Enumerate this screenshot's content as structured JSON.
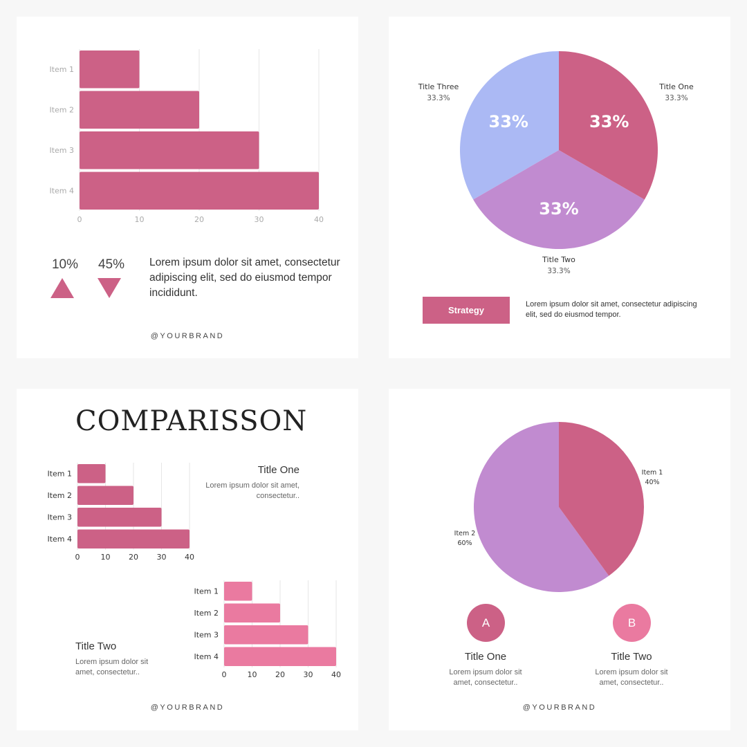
{
  "colors": {
    "pink": "#cc6186",
    "light_pink": "#ea7aa0",
    "lavender": "#abb9f4",
    "purple": "#c18bd0",
    "background": "#f7f7f7"
  },
  "panel1": {
    "brand": "@YOURBRAND",
    "stats": [
      {
        "value": "10%",
        "direction": "up"
      },
      {
        "value": "45%",
        "direction": "down"
      }
    ],
    "text": "Lorem ipsum dolor sit amet, consectetur adipiscing elit, sed do eiusmod tempor incididunt."
  },
  "panel2": {
    "slice_labels": [
      {
        "title": "Title One",
        "pct": "33.3%"
      },
      {
        "title": "Title Two",
        "pct": "33.3%"
      },
      {
        "title": "Title Three",
        "pct": "33.3%"
      }
    ],
    "inner_labels": [
      "33%",
      "33%",
      "33%"
    ],
    "button": "Strategy",
    "text": "Lorem ipsum dolor sit amet, consectetur adipiscing elit, sed do eiusmod tempor."
  },
  "panel3": {
    "title": "COMPARISSON",
    "block_one": {
      "title": "Title One",
      "text": "Lorem ipsum dolor sit amet, consectetur.."
    },
    "block_two": {
      "title": "Title Two",
      "text": "Lorem ipsum dolor sit amet, consectetur.."
    },
    "brand": "@YOURBRAND"
  },
  "panel4": {
    "slice_labels": [
      {
        "title": "Item 1",
        "pct": "40%"
      },
      {
        "title": "Item 2",
        "pct": "60%"
      }
    ],
    "circles": [
      {
        "letter": "A",
        "title": "Title One",
        "text": "Lorem ipsum dolor sit amet, consectetur.."
      },
      {
        "letter": "B",
        "title": "Title Two",
        "text": "Lorem ipsum dolor sit amet, consectetur.."
      }
    ],
    "brand": "@YOURBRAND"
  },
  "chart_data": [
    {
      "type": "bar",
      "orientation": "horizontal",
      "categories": [
        "Item 1",
        "Item 2",
        "Item 3",
        "Item 4"
      ],
      "values": [
        10,
        20,
        30,
        40
      ],
      "xticks": [
        0,
        10,
        20,
        30,
        40
      ],
      "xlim": [
        0,
        40
      ],
      "grid": true,
      "color": "#cc6186"
    },
    {
      "type": "pie",
      "categories": [
        "Title One",
        "Title Two",
        "Title Three"
      ],
      "values": [
        33.3,
        33.3,
        33.3
      ],
      "colors": [
        "#cc6186",
        "#c18bd0",
        "#abb9f4"
      ]
    },
    {
      "type": "bar",
      "orientation": "horizontal",
      "categories": [
        "Item 1",
        "Item 2",
        "Item 3",
        "Item 4"
      ],
      "values": [
        10,
        20,
        30,
        40
      ],
      "xticks": [
        0,
        10,
        20,
        30,
        40
      ],
      "xlim": [
        0,
        40
      ],
      "grid": true,
      "color": "#cc6186"
    },
    {
      "type": "bar",
      "orientation": "horizontal",
      "categories": [
        "Item 1",
        "Item 2",
        "Item 3",
        "Item 4"
      ],
      "values": [
        10,
        20,
        30,
        40
      ],
      "xticks": [
        0,
        10,
        20,
        30,
        40
      ],
      "xlim": [
        0,
        40
      ],
      "grid": true,
      "color": "#ea7aa0"
    },
    {
      "type": "pie",
      "categories": [
        "Item 1",
        "Item 2"
      ],
      "values": [
        40,
        60
      ],
      "colors": [
        "#cc6186",
        "#c18bd0"
      ]
    }
  ]
}
